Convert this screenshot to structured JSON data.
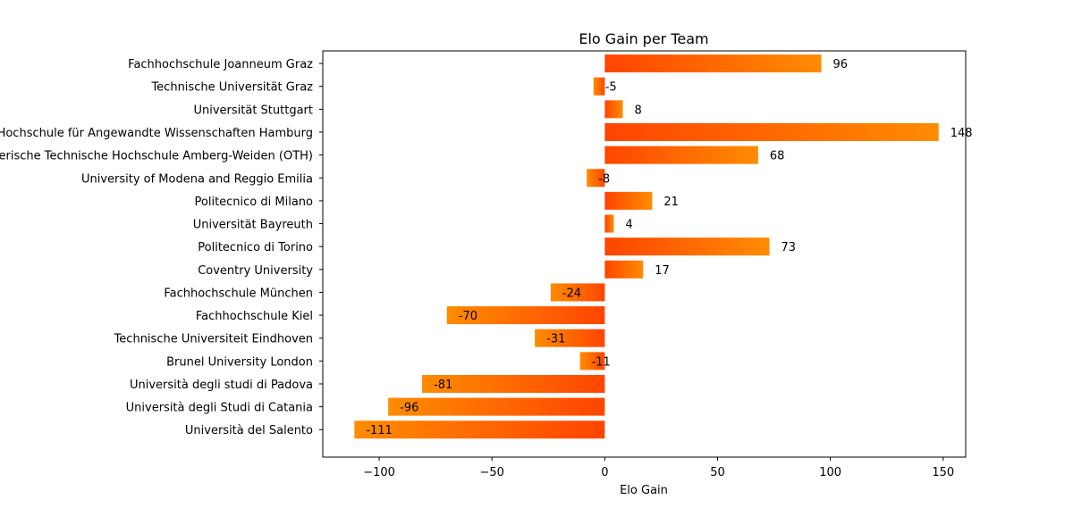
{
  "chart_data": {
    "type": "bar",
    "orientation": "horizontal",
    "title": "Elo Gain per Team",
    "xlabel": "Elo Gain",
    "ylabel": "",
    "xlim": [
      -125,
      160
    ],
    "xticks": [
      -100,
      -50,
      0,
      50,
      100,
      150
    ],
    "xtick_labels": [
      "−100",
      "−50",
      "0",
      "50",
      "100",
      "150"
    ],
    "grid": false,
    "colors": {
      "bar_base": "#ff4500",
      "bar_tip": "#ff8c00",
      "axes": "#000000"
    },
    "categories": [
      "Fachhochschule Joanneum Graz",
      "Technische Universität Graz",
      "Universität Stuttgart",
      "Hochschule für Angewandte Wissenschaften Hamburg",
      "Ostbayerische Technische Hochschule Amberg-Weiden (OTH)",
      "University of Modena and Reggio Emilia",
      "Politecnico di Milano",
      "Universität Bayreuth",
      "Politecnico di Torino",
      "Coventry University",
      "Fachhochschule München",
      "Fachhochschule Kiel",
      "Technische Universiteit Eindhoven",
      "Brunel University London",
      "Università degli studi di Padova",
      "Università degli Studi di Catania",
      "Università del Salento"
    ],
    "values": [
      96,
      -5,
      8,
      148,
      68,
      -8,
      21,
      4,
      73,
      17,
      -24,
      -70,
      -31,
      -11,
      -81,
      -96,
      -111
    ]
  }
}
